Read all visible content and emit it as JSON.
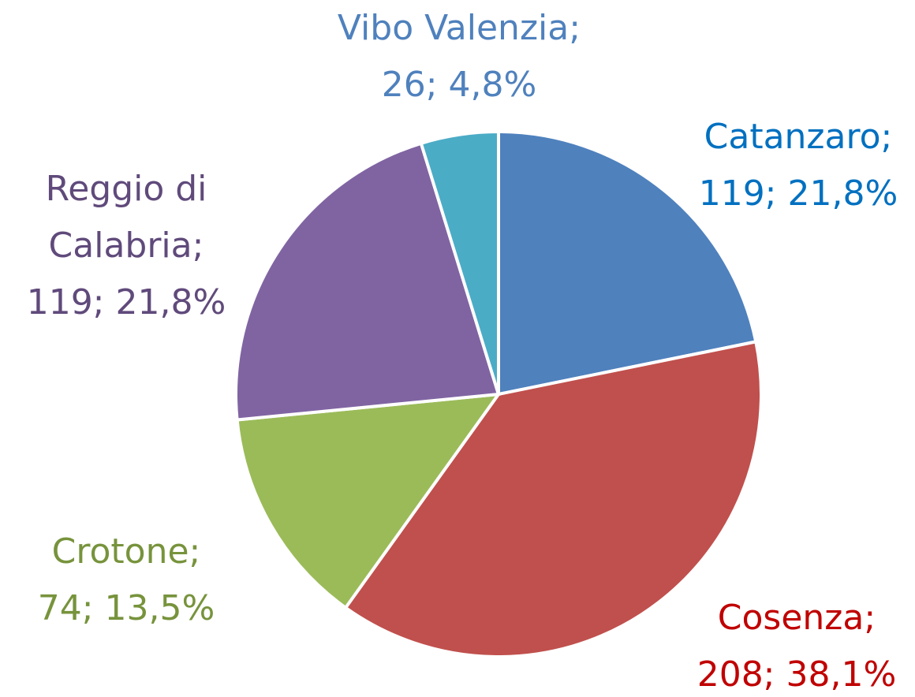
{
  "chart_data": {
    "type": "pie",
    "categories": [
      "Catanzaro",
      "Cosenza",
      "Crotone",
      "Reggio di Calabria",
      "Vibo Valenzia"
    ],
    "values": [
      119,
      208,
      74,
      119,
      26
    ],
    "value_labels": [
      "119; 21,8%",
      "208; 38,1%",
      "74; 13,5%",
      "119; 21,8%",
      "26; 4,8%"
    ],
    "label_separator": ";",
    "colors": [
      "#4f81bd",
      "#c0504d",
      "#9bbb59",
      "#8064a2",
      "#4bacc6"
    ],
    "label_colors": [
      "#0070c0",
      "#c00000",
      "#77933c",
      "#604a7b",
      "#4f81bd"
    ]
  }
}
